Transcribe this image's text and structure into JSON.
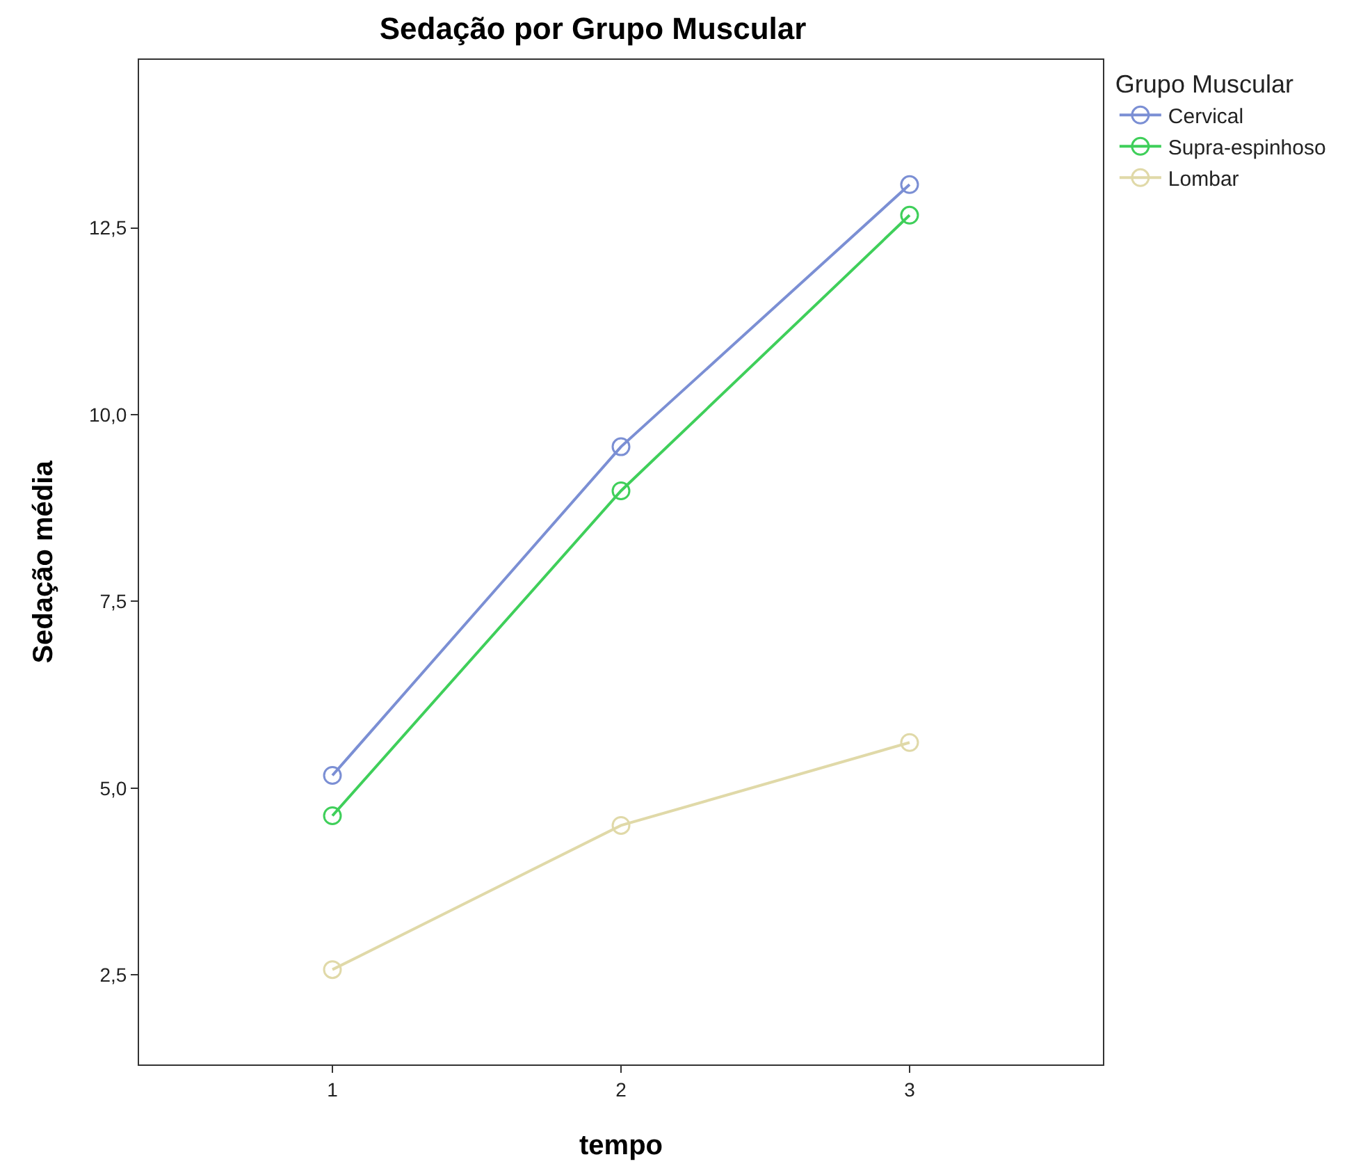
{
  "chart_data": {
    "type": "line",
    "title": "Sedação por Grupo Muscular",
    "xlabel": "tempo",
    "ylabel": "Sedação média",
    "legend_title": "Grupo Muscular",
    "x": [
      1,
      2,
      3
    ],
    "series": [
      {
        "name": "Cervical",
        "color": "#7b8fd4",
        "values": [
          5.17,
          9.57,
          13.08
        ]
      },
      {
        "name": "Supra-espinhoso",
        "color": "#3fcf5a",
        "values": [
          4.63,
          8.98,
          12.67
        ]
      },
      {
        "name": "Lombar",
        "color": "#e0d9a8",
        "values": [
          2.57,
          4.5,
          5.61
        ]
      }
    ],
    "xlim": [
      0.33,
      3.67
    ],
    "xticks": [
      1,
      2,
      3
    ],
    "ylim": [
      1.3,
      14.75
    ],
    "yticks": [
      {
        "value": 2.5,
        "label": "2,5"
      },
      {
        "value": 5,
        "label": "5,0"
      },
      {
        "value": 7.5,
        "label": "7,5"
      },
      {
        "value": 10,
        "label": "10,0"
      },
      {
        "value": 12.5,
        "label": "12,5"
      }
    ],
    "grid": false,
    "legend": "top right",
    "marker": "circle",
    "line_style": "solid"
  }
}
